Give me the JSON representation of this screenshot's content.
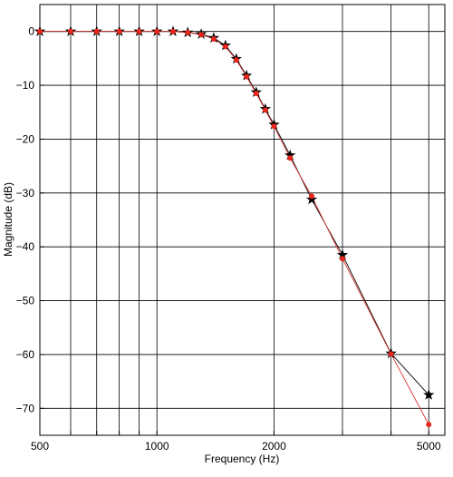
{
  "chart_data": {
    "type": "line",
    "xscale": "log",
    "xlim": [
      500,
      5500
    ],
    "ylim": [
      -75,
      5
    ],
    "xlabel": "Frequency (Hz)",
    "ylabel": "Magnitude (dB)",
    "grid": true,
    "xtick_values": [
      500,
      600,
      700,
      800,
      900,
      1000,
      2000,
      3000,
      4000,
      5000
    ],
    "xtick_labels": [
      "500",
      "",
      "",
      "",
      "",
      "1000",
      "2000",
      "",
      "",
      "5000"
    ],
    "ytick_values": [
      0,
      -10,
      -20,
      -30,
      -40,
      -50,
      -60,
      -70
    ],
    "ytick_labels": [
      "0",
      "−10",
      "−20",
      "−30",
      "−40",
      "−50",
      "−60",
      "−70"
    ],
    "series": [
      {
        "marker": "star",
        "line_color": "#000000",
        "marker_color": "#000000",
        "x": [
          500,
          600,
          700,
          800,
          900,
          1000,
          1100,
          1200,
          1300,
          1400,
          1500,
          1600,
          1700,
          1800,
          1900,
          2000,
          2200,
          2500,
          3000,
          4000,
          5000
        ],
        "y": [
          0,
          0,
          0,
          0,
          0,
          0,
          0,
          -0.2,
          -0.5,
          -1.2,
          -2.6,
          -5.1,
          -8.2,
          -11.3,
          -14.4,
          -17.3,
          -23.0,
          -31.2,
          -41.5,
          -59.8,
          -67.5
        ]
      },
      {
        "marker": "circle",
        "line_color": "#d93636",
        "marker_color": "#e8261b",
        "x": [
          500,
          600,
          700,
          800,
          900,
          1000,
          1100,
          1200,
          1300,
          1400,
          1500,
          1600,
          1700,
          1800,
          1900,
          2000,
          2200,
          2500,
          3000,
          4000,
          5000
        ],
        "y": [
          0,
          0,
          0,
          0,
          0,
          0,
          0,
          -0.2,
          -0.6,
          -1.4,
          -2.8,
          -5.3,
          -8.4,
          -11.5,
          -14.6,
          -17.6,
          -23.5,
          -30.6,
          -42.2,
          -59.9,
          -73.0
        ]
      }
    ]
  }
}
